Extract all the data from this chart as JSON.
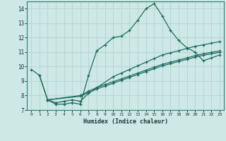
{
  "xlabel": "Humidex (Indice chaleur)",
  "bg_color": "#cde8e5",
  "grid_color": "#b8d8d5",
  "line_color": "#1e6b63",
  "xlim": [
    -0.5,
    23.5
  ],
  "ylim": [
    7,
    14.5
  ],
  "xticks": [
    0,
    1,
    2,
    3,
    4,
    5,
    6,
    7,
    8,
    9,
    10,
    11,
    12,
    13,
    14,
    15,
    16,
    17,
    18,
    19,
    20,
    21,
    22,
    23
  ],
  "yticks": [
    7,
    8,
    9,
    10,
    11,
    12,
    13,
    14
  ],
  "curve1_x": [
    0,
    1,
    2,
    3,
    4,
    5,
    6,
    7,
    8,
    9,
    10,
    11,
    12,
    13,
    14,
    15,
    16,
    17,
    18,
    19,
    20,
    21,
    22,
    23
  ],
  "curve1_y": [
    9.8,
    9.4,
    7.7,
    7.4,
    7.4,
    7.5,
    7.4,
    9.4,
    11.1,
    11.5,
    12.0,
    12.1,
    12.5,
    13.2,
    14.0,
    14.35,
    13.5,
    12.5,
    11.8,
    11.3,
    11.0,
    10.4,
    10.6,
    10.8
  ],
  "curve2_x": [
    1,
    2,
    3,
    4,
    5,
    6,
    7,
    10,
    11,
    12,
    13,
    14,
    15,
    16,
    17,
    18,
    19,
    20,
    21,
    22,
    23
  ],
  "curve2_y": [
    9.4,
    7.7,
    7.5,
    7.6,
    7.7,
    7.6,
    8.15,
    9.3,
    9.55,
    9.8,
    10.05,
    10.3,
    10.55,
    10.8,
    10.95,
    11.1,
    11.25,
    11.4,
    11.5,
    11.62,
    11.72
  ],
  "curve3_x": [
    2,
    6,
    7,
    8,
    9,
    10,
    11,
    12,
    13,
    14,
    15,
    16,
    17,
    18,
    19,
    20,
    21,
    22,
    23
  ],
  "curve3_y": [
    7.7,
    8.0,
    8.3,
    8.55,
    8.75,
    8.95,
    9.15,
    9.35,
    9.55,
    9.75,
    9.95,
    10.15,
    10.3,
    10.45,
    10.6,
    10.75,
    10.88,
    10.98,
    11.08
  ],
  "curve4_x": [
    2,
    6,
    7,
    8,
    9,
    10,
    11,
    12,
    13,
    14,
    15,
    16,
    17,
    18,
    19,
    20,
    21,
    22,
    23
  ],
  "curve4_y": [
    7.7,
    7.95,
    8.2,
    8.45,
    8.65,
    8.85,
    9.05,
    9.25,
    9.45,
    9.65,
    9.85,
    10.05,
    10.2,
    10.35,
    10.5,
    10.65,
    10.78,
    10.88,
    10.98
  ]
}
